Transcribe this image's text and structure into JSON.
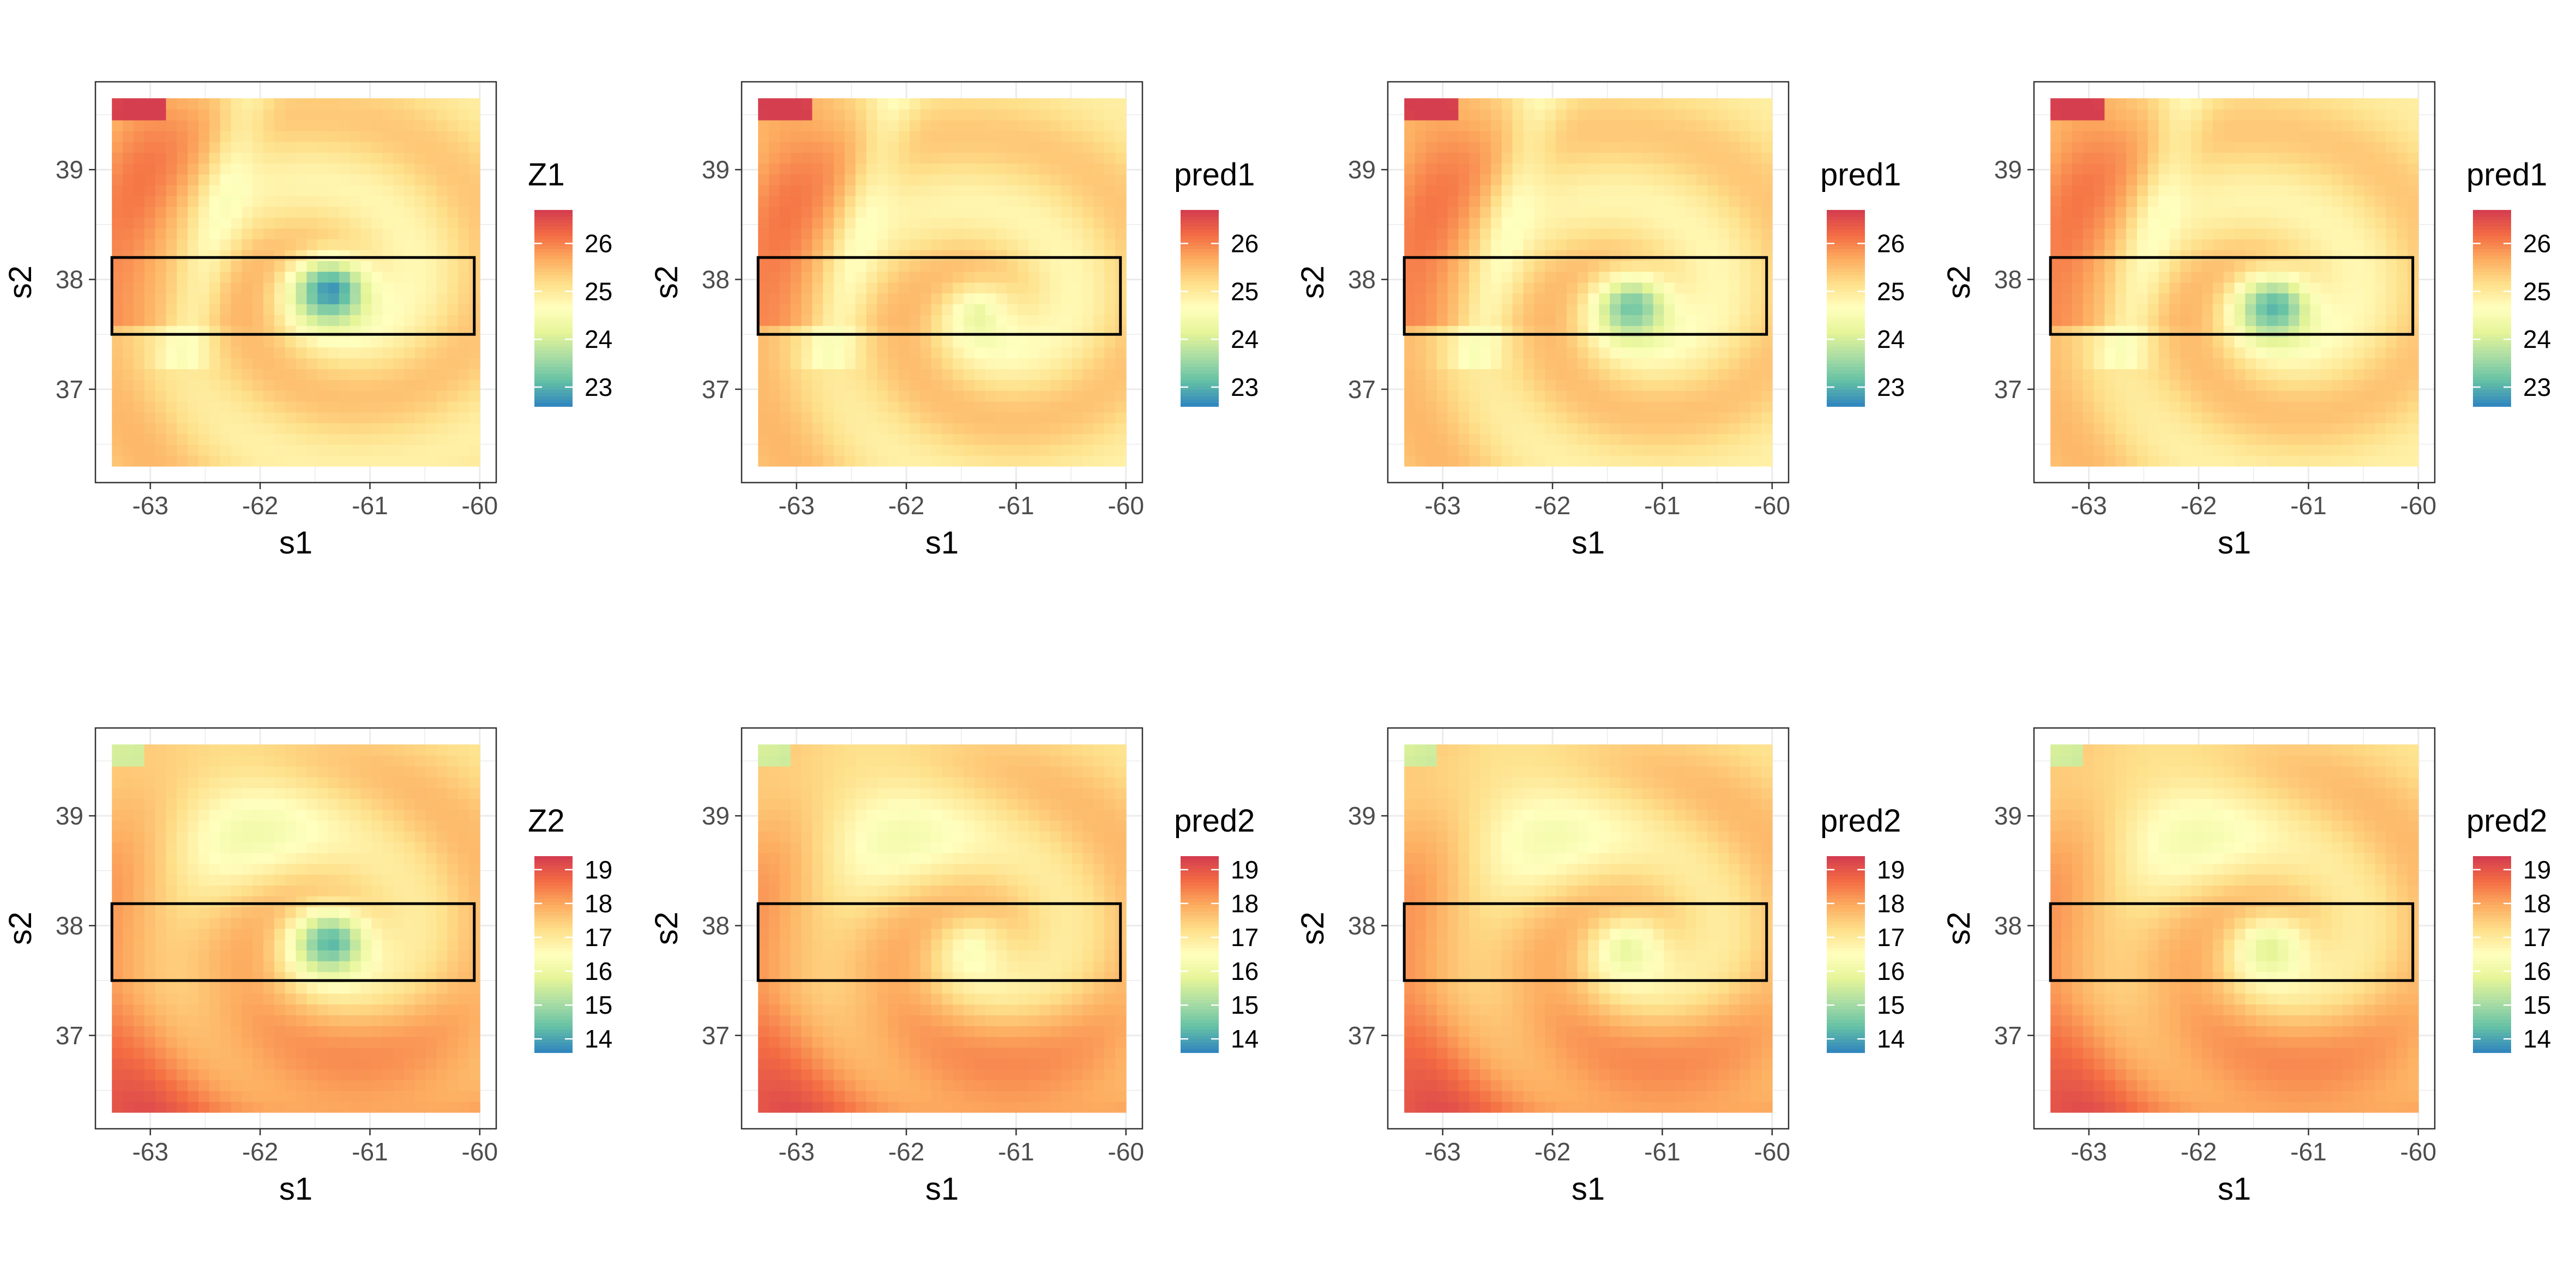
{
  "chart_data": [
    {
      "type": "heatmap",
      "row": 0,
      "col": 0,
      "variable": "Z1",
      "legend_title": "Z1",
      "xlabel": "s1",
      "ylabel": "s2",
      "xlim": [
        -63.5,
        -59.85
      ],
      "ylim": [
        36.15,
        39.8
      ],
      "x_ticks": [
        "-63",
        "-62",
        "-61",
        "-60"
      ],
      "y_ticks": [
        "37",
        "38",
        "39"
      ],
      "color_range": [
        22.6,
        26.7
      ],
      "legend_ticks": [
        "23",
        "24",
        "25",
        "26"
      ],
      "palette": "Spectral (reversed)",
      "box": {
        "x": [
          -63.35,
          -60.05
        ],
        "y": [
          37.5,
          38.2
        ]
      },
      "field": {
        "x_range": [
          -63.35,
          -60.0
        ],
        "y_range": [
          36.3,
          39.65
        ],
        "eddy_center": [
          -61.35,
          37.9
        ],
        "eddy_min": 22.7,
        "eddy_strength": 1.0
      }
    },
    {
      "type": "heatmap",
      "row": 0,
      "col": 1,
      "variable": "pred1",
      "legend_title": "pred1",
      "xlabel": "s1",
      "ylabel": "s2",
      "xlim": [
        -63.5,
        -59.85
      ],
      "ylim": [
        36.15,
        39.8
      ],
      "x_ticks": [
        "-63",
        "-62",
        "-61",
        "-60"
      ],
      "y_ticks": [
        "37",
        "38",
        "39"
      ],
      "color_range": [
        22.6,
        26.7
      ],
      "legend_ticks": [
        "23",
        "24",
        "25",
        "26"
      ],
      "palette": "Spectral (reversed)",
      "box": {
        "x": [
          -63.35,
          -60.05
        ],
        "y": [
          37.5,
          38.2
        ]
      },
      "field": {
        "x_range": [
          -63.35,
          -60.0
        ],
        "y_range": [
          36.3,
          39.65
        ],
        "eddy_center": [
          -61.25,
          37.7
        ],
        "eddy_min": 23.8,
        "eddy_strength": 0.55
      }
    },
    {
      "type": "heatmap",
      "row": 0,
      "col": 2,
      "variable": "pred1",
      "legend_title": "pred1",
      "xlabel": "s1",
      "ylabel": "s2",
      "xlim": [
        -63.5,
        -59.85
      ],
      "ylim": [
        36.15,
        39.8
      ],
      "x_ticks": [
        "-63",
        "-62",
        "-61",
        "-60"
      ],
      "y_ticks": [
        "37",
        "38",
        "39"
      ],
      "color_range": [
        22.6,
        26.7
      ],
      "legend_ticks": [
        "23",
        "24",
        "25",
        "26"
      ],
      "palette": "Spectral (reversed)",
      "box": {
        "x": [
          -63.35,
          -60.05
        ],
        "y": [
          37.5,
          38.2
        ]
      },
      "field": {
        "x_range": [
          -63.35,
          -60.0
        ],
        "y_range": [
          36.3,
          39.65
        ],
        "eddy_center": [
          -61.25,
          37.75
        ],
        "eddy_min": 23.0,
        "eddy_strength": 0.9
      }
    },
    {
      "type": "heatmap",
      "row": 0,
      "col": 3,
      "variable": "pred1",
      "legend_title": "pred1",
      "xlabel": "s1",
      "ylabel": "s2",
      "xlim": [
        -63.5,
        -59.85
      ],
      "ylim": [
        36.15,
        39.8
      ],
      "x_ticks": [
        "-63",
        "-62",
        "-61",
        "-60"
      ],
      "y_ticks": [
        "37",
        "38",
        "39"
      ],
      "color_range": [
        22.6,
        26.7
      ],
      "legend_ticks": [
        "23",
        "24",
        "25",
        "26"
      ],
      "palette": "Spectral (reversed)",
      "box": {
        "x": [
          -63.35,
          -60.05
        ],
        "y": [
          37.5,
          38.2
        ]
      },
      "field": {
        "x_range": [
          -63.35,
          -60.0
        ],
        "y_range": [
          36.3,
          39.65
        ],
        "eddy_center": [
          -61.3,
          37.75
        ],
        "eddy_min": 22.9,
        "eddy_strength": 0.95
      }
    },
    {
      "type": "heatmap",
      "row": 1,
      "col": 0,
      "variable": "Z2",
      "legend_title": "Z2",
      "xlabel": "s1",
      "ylabel": "s2",
      "xlim": [
        -63.5,
        -59.85
      ],
      "ylim": [
        36.15,
        39.8
      ],
      "x_ticks": [
        "-63",
        "-62",
        "-61",
        "-60"
      ],
      "y_ticks": [
        "37",
        "38",
        "39"
      ],
      "color_range": [
        13.6,
        19.4
      ],
      "legend_ticks": [
        "14",
        "15",
        "16",
        "17",
        "18",
        "19"
      ],
      "palette": "Spectral (reversed)",
      "box": {
        "x": [
          -63.35,
          -60.05
        ],
        "y": [
          37.5,
          38.2
        ]
      },
      "field": {
        "x_range": [
          -63.35,
          -60.0
        ],
        "y_range": [
          36.3,
          39.65
        ],
        "eddy_center": [
          -61.35,
          37.85
        ],
        "eddy_min": 14.2,
        "eddy_strength": 1.0
      }
    },
    {
      "type": "heatmap",
      "row": 1,
      "col": 1,
      "variable": "pred2",
      "legend_title": "pred2",
      "xlabel": "s1",
      "ylabel": "s2",
      "xlim": [
        -63.5,
        -59.85
      ],
      "ylim": [
        36.15,
        39.8
      ],
      "x_ticks": [
        "-63",
        "-62",
        "-61",
        "-60"
      ],
      "y_ticks": [
        "37",
        "38",
        "39"
      ],
      "color_range": [
        13.6,
        19.4
      ],
      "legend_ticks": [
        "14",
        "15",
        "16",
        "17",
        "18",
        "19"
      ],
      "palette": "Spectral (reversed)",
      "box": {
        "x": [
          -63.35,
          -60.05
        ],
        "y": [
          37.5,
          38.2
        ]
      },
      "field": {
        "x_range": [
          -63.35,
          -60.0
        ],
        "y_range": [
          36.3,
          39.65
        ],
        "eddy_center": [
          -61.3,
          37.8
        ],
        "eddy_min": 15.8,
        "eddy_strength": 0.55
      }
    },
    {
      "type": "heatmap",
      "row": 1,
      "col": 2,
      "variable": "pred2",
      "legend_title": "pred2",
      "xlabel": "s1",
      "ylabel": "s2",
      "xlim": [
        -63.5,
        -59.85
      ],
      "ylim": [
        36.15,
        39.8
      ],
      "x_ticks": [
        "-63",
        "-62",
        "-61",
        "-60"
      ],
      "y_ticks": [
        "37",
        "38",
        "39"
      ],
      "color_range": [
        13.6,
        19.4
      ],
      "legend_ticks": [
        "14",
        "15",
        "16",
        "17",
        "18",
        "19"
      ],
      "palette": "Spectral (reversed)",
      "box": {
        "x": [
          -63.35,
          -60.05
        ],
        "y": [
          37.5,
          38.2
        ]
      },
      "field": {
        "x_range": [
          -63.35,
          -60.0
        ],
        "y_range": [
          36.3,
          39.65
        ],
        "eddy_center": [
          -61.25,
          37.8
        ],
        "eddy_min": 15.4,
        "eddy_strength": 0.7
      }
    },
    {
      "type": "heatmap",
      "row": 1,
      "col": 3,
      "variable": "pred2",
      "legend_title": "pred2",
      "xlabel": "s1",
      "ylabel": "s2",
      "xlim": [
        -63.5,
        -59.85
      ],
      "ylim": [
        36.15,
        39.8
      ],
      "x_ticks": [
        "-63",
        "-62",
        "-61",
        "-60"
      ],
      "y_ticks": [
        "37",
        "38",
        "39"
      ],
      "color_range": [
        13.6,
        19.4
      ],
      "legend_ticks": [
        "14",
        "15",
        "16",
        "17",
        "18",
        "19"
      ],
      "palette": "Spectral (reversed)",
      "box": {
        "x": [
          -63.35,
          -60.05
        ],
        "y": [
          37.5,
          38.2
        ]
      },
      "field": {
        "x_range": [
          -63.35,
          -60.0
        ],
        "y_range": [
          36.3,
          39.65
        ],
        "eddy_center": [
          -61.3,
          37.8
        ],
        "eddy_min": 15.3,
        "eddy_strength": 0.75
      }
    }
  ],
  "colors": {
    "spectral_reversed": [
      "#3288bd",
      "#66c2a5",
      "#abdda4",
      "#e6f598",
      "#ffffbf",
      "#fee08b",
      "#fdae61",
      "#f46d43",
      "#d53e4f"
    ],
    "panel_border": "#333333",
    "grid": "#ebebeb",
    "box_outline": "#000000"
  }
}
